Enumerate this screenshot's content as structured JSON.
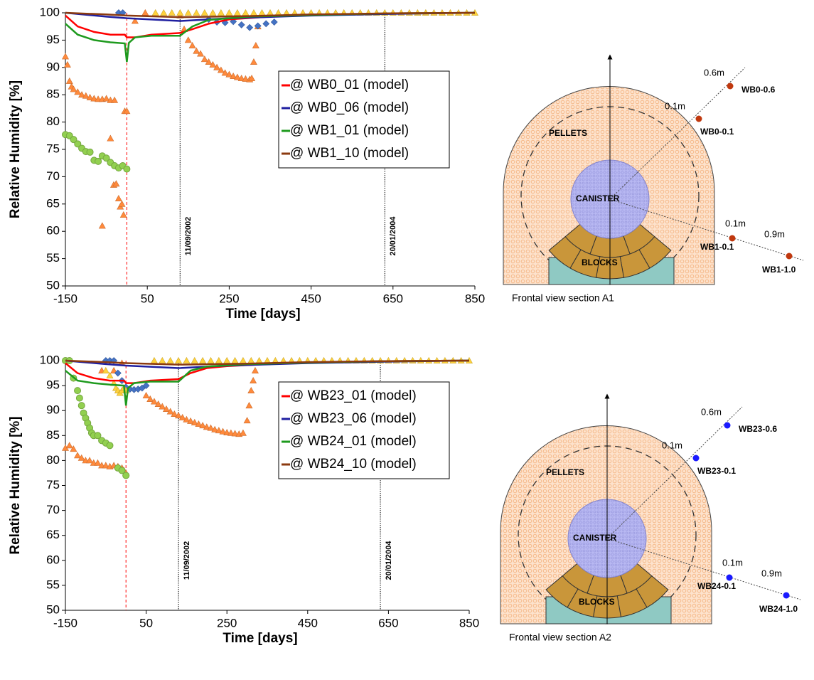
{
  "chart_data": [
    {
      "type": "line",
      "x_label": "Time [days]",
      "y_label": "Relative Humidity [%]",
      "xlim": [
        -150,
        850
      ],
      "xticks": [
        -150,
        50,
        250,
        450,
        650,
        850
      ],
      "ylim": [
        50,
        100
      ],
      "yticks": [
        50,
        55,
        60,
        65,
        70,
        75,
        80,
        85,
        90,
        95,
        100
      ],
      "legend_loc": "upper center",
      "series": [
        {
          "name": "@ WB0_01 (model)",
          "color": "#ff0000",
          "x": [
            -150,
            -120,
            -80,
            -40,
            -5,
            0,
            20,
            60,
            130,
            160,
            200,
            250,
            350,
            450,
            650,
            850
          ],
          "values": [
            99.5,
            97.5,
            96.5,
            96,
            96,
            95.5,
            95.5,
            96,
            96.3,
            97,
            98,
            98.8,
            99.3,
            99.6,
            99.9,
            100
          ]
        },
        {
          "name": "@ WB0_06 (model)",
          "color": "#1f1fa0",
          "x": [
            -150,
            -50,
            0,
            130,
            250,
            450,
            650,
            850
          ],
          "values": [
            100,
            99.3,
            99,
            98.5,
            99,
            99.5,
            99.8,
            100
          ]
        },
        {
          "name": "@ WB1_01 (model)",
          "color": "#1e9a1e",
          "x": [
            -150,
            -120,
            -80,
            -40,
            -5,
            0,
            5,
            20,
            60,
            130,
            160,
            200,
            300,
            450,
            650,
            850
          ],
          "values": [
            98,
            96,
            95,
            94.6,
            94.4,
            91,
            94.5,
            95.5,
            95.8,
            95.8,
            97.5,
            98.7,
            99.3,
            99.6,
            99.9,
            100
          ]
        },
        {
          "name": "@ WB1_10 (model)",
          "color": "#8b3a0f",
          "x": [
            -150,
            -50,
            0,
            130,
            300,
            450,
            650,
            850
          ],
          "values": [
            100,
            99.7,
            99.5,
            99.2,
            99.4,
            99.7,
            99.9,
            100
          ]
        }
      ],
      "measurements": [
        {
          "marker": "triangle",
          "color": "#ff8a3c",
          "x": [
            -150,
            -145,
            -140,
            -135,
            -130,
            -120,
            -110,
            -100,
            -90,
            -80,
            -70,
            -60,
            -50,
            -40,
            -30,
            -60,
            -40,
            -32,
            -26,
            -20,
            -16,
            -12,
            -8,
            -5,
            0,
            20,
            45,
            130,
            140,
            150,
            160,
            170,
            180,
            190,
            200,
            210,
            220,
            230,
            240,
            250,
            260,
            270,
            280,
            290,
            300,
            305,
            310,
            315,
            320
          ],
          "values": [
            92,
            90.5,
            87.5,
            86.5,
            86,
            85.5,
            85,
            84.8,
            84.5,
            84.3,
            84.2,
            84.2,
            84.3,
            84,
            84,
            61,
            77,
            68.5,
            68.7,
            66,
            64.5,
            65,
            63,
            82,
            82,
            98.5,
            100,
            99.5,
            97,
            95,
            94,
            93,
            92.5,
            91.5,
            91,
            90.5,
            90,
            89.5,
            89,
            88.7,
            88.4,
            88.2,
            88,
            87.9,
            87.8,
            88,
            91,
            94,
            97.5
          ]
        },
        {
          "marker": "circle",
          "color": "#92d050",
          "x": [
            -150,
            -140,
            -130,
            -120,
            -110,
            -100,
            -90,
            -80,
            -70,
            -60,
            -50,
            -40,
            -30,
            -20,
            -10,
            0
          ],
          "values": [
            77.7,
            77.5,
            76.8,
            76,
            75.2,
            74.6,
            74.5,
            73,
            72.8,
            73.8,
            73.4,
            72.6,
            72,
            71.6,
            72,
            71.4
          ]
        },
        {
          "marker": "diamond",
          "color": "#4472c4",
          "x": [
            -20,
            -10,
            200,
            220,
            240,
            260,
            280,
            300,
            320,
            340,
            360
          ],
          "values": [
            100,
            100,
            98.8,
            98.3,
            98.2,
            98.4,
            97.8,
            97.3,
            97.6,
            98,
            98.3
          ]
        },
        {
          "marker": "triangle",
          "color": "#ffd23c",
          "x": [
            70,
            90,
            110,
            130,
            150,
            170,
            190,
            210,
            230,
            250,
            270,
            290,
            310,
            330,
            350,
            370,
            390,
            410,
            430,
            450,
            470,
            490,
            510,
            530,
            550,
            570,
            590,
            610,
            630,
            650,
            670,
            690,
            710,
            730,
            750,
            770,
            790,
            810,
            830,
            850
          ],
          "values": [
            100,
            100,
            100,
            100,
            100,
            100,
            100,
            100,
            100,
            100,
            100,
            100,
            100,
            100,
            100,
            100,
            100,
            100,
            100,
            100,
            100,
            100,
            100,
            100,
            100,
            100,
            100,
            100,
            100,
            100,
            100,
            100,
            100,
            100,
            100,
            100,
            100,
            100,
            100,
            100
          ]
        }
      ],
      "vlines": [
        {
          "x": 0,
          "color": "#ff0000",
          "style": "dashed"
        },
        {
          "x": 130,
          "color": "#000000",
          "style": "dotted",
          "label": "11/09/2002"
        },
        {
          "x": 630,
          "color": "#000000",
          "style": "dotted",
          "label": "20/01/2004"
        }
      ]
    },
    {
      "type": "line",
      "x_label": "Time [days]",
      "y_label": "Relative Humidity [%]",
      "xlim": [
        -150,
        850
      ],
      "xticks": [
        -150,
        50,
        250,
        450,
        650,
        850
      ],
      "ylim": [
        50,
        100
      ],
      "yticks": [
        50,
        55,
        60,
        65,
        70,
        75,
        80,
        85,
        90,
        95,
        100
      ],
      "legend_loc": "upper center",
      "series": [
        {
          "name": "@ WB23_01 (model)",
          "color": "#ff0000",
          "x": [
            -150,
            -120,
            -80,
            -40,
            -5,
            0,
            20,
            60,
            130,
            160,
            200,
            250,
            350,
            450,
            650,
            850
          ],
          "values": [
            99.5,
            97.5,
            96.5,
            96,
            96,
            95.5,
            95.5,
            96,
            96.3,
            97.5,
            98.5,
            98.9,
            99.3,
            99.6,
            99.9,
            100
          ]
        },
        {
          "name": "@ WB23_06 (model)",
          "color": "#1f1fa0",
          "x": [
            -150,
            -50,
            0,
            130,
            250,
            450,
            650,
            850
          ],
          "values": [
            100,
            99.3,
            99,
            98.5,
            99,
            99.5,
            99.8,
            100
          ]
        },
        {
          "name": "@ WB24_01 (model)",
          "color": "#1e9a1e",
          "x": [
            -150,
            -120,
            -80,
            -40,
            -5,
            0,
            5,
            20,
            60,
            130,
            160,
            200,
            300,
            450,
            650,
            850
          ],
          "values": [
            98,
            96,
            95.5,
            95.2,
            95,
            91,
            94.5,
            95.5,
            95.8,
            95.8,
            98,
            98.8,
            99.3,
            99.6,
            99.9,
            100
          ]
        },
        {
          "name": "@ WB24_10 (model)",
          "color": "#8b3a0f",
          "x": [
            -150,
            -50,
            0,
            130,
            300,
            450,
            650,
            850
          ],
          "values": [
            100,
            99.7,
            99.5,
            99.2,
            99.4,
            99.7,
            99.9,
            100
          ]
        }
      ],
      "measurements": [
        {
          "marker": "triangle",
          "color": "#ff8a3c",
          "x": [
            -150,
            -140,
            -130,
            -120,
            -110,
            -100,
            -90,
            -80,
            -70,
            -60,
            -50,
            -40,
            -30,
            -20,
            -10,
            -5,
            0,
            -60,
            -30,
            -10,
            50,
            60,
            70,
            80,
            90,
            100,
            110,
            120,
            130,
            140,
            150,
            160,
            170,
            180,
            190,
            200,
            210,
            220,
            230,
            240,
            250,
            260,
            270,
            280,
            290,
            300,
            305,
            310,
            315,
            320
          ],
          "values": [
            82.5,
            83,
            82.3,
            81,
            80.5,
            80,
            80,
            79.5,
            79.5,
            79,
            79,
            78.8,
            79,
            78.8,
            78.5,
            78,
            77.5,
            98,
            98,
            99.5,
            93,
            92.3,
            91.8,
            91.3,
            90.8,
            90.3,
            89.8,
            89.3,
            89,
            88.6,
            88.2,
            87.9,
            87.6,
            87.3,
            87,
            86.7,
            86.5,
            86.2,
            86,
            85.8,
            85.6,
            85.5,
            85.4,
            85.3,
            85.5,
            88,
            91,
            94,
            96,
            98
          ]
        },
        {
          "marker": "circle",
          "color": "#92d050",
          "x": [
            -150,
            -140,
            -130,
            -120,
            -115,
            -110,
            -105,
            -100,
            -95,
            -90,
            -85,
            -80,
            -70,
            -60,
            -50,
            -40,
            -20,
            -10,
            0
          ],
          "values": [
            100,
            100,
            96.5,
            94,
            92.5,
            91,
            89.5,
            88.5,
            87.5,
            86.5,
            85.5,
            85,
            85,
            84,
            83.5,
            83,
            78.5,
            78,
            77
          ]
        },
        {
          "marker": "diamond",
          "color": "#4472c4",
          "x": [
            -50,
            -40,
            -30,
            -20,
            -10,
            0,
            10,
            20,
            30,
            40,
            50
          ],
          "values": [
            100,
            100,
            100,
            97.5,
            96,
            94.7,
            94.3,
            94.2,
            94.3,
            94.5,
            95
          ]
        },
        {
          "marker": "triangle",
          "color": "#ffd23c",
          "x": [
            -50,
            -40,
            -30,
            -25,
            -20,
            -15,
            -10,
            -5,
            0,
            70,
            90,
            110,
            130,
            150,
            170,
            190,
            210,
            230,
            250,
            270,
            290,
            310,
            330,
            350,
            370,
            390,
            410,
            430,
            450,
            470,
            490,
            510,
            530,
            550,
            570,
            590,
            610,
            630,
            650,
            670,
            690,
            710,
            730,
            750,
            770,
            790,
            810,
            830,
            850
          ],
          "values": [
            98,
            97,
            95.5,
            94.5,
            94,
            93.5,
            94,
            94.5,
            94,
            100,
            100,
            100,
            100,
            100,
            100,
            100,
            100,
            100,
            100,
            100,
            100,
            100,
            100,
            100,
            100,
            100,
            100,
            100,
            100,
            100,
            100,
            100,
            100,
            100,
            100,
            100,
            100,
            100,
            100,
            100,
            100,
            100,
            100,
            100,
            100,
            100,
            100,
            100,
            100
          ]
        }
      ],
      "vlines": [
        {
          "x": 0,
          "color": "#ff0000",
          "style": "dashed"
        },
        {
          "x": 130,
          "color": "#000000",
          "style": "dotted",
          "label": "11/09/2002"
        },
        {
          "x": 630,
          "color": "#000000",
          "style": "dotted",
          "label": "20/01/2004"
        }
      ]
    }
  ],
  "diagrams": [
    {
      "pellets": "PELLETS",
      "canister": "CANISTER",
      "blocks": "BLOCKS",
      "caption": "Frontal view section A1",
      "point_color": "#c0380e",
      "points": [
        {
          "distance": "0.6m",
          "name": "WB0-0.6"
        },
        {
          "distance": "0.1m",
          "name": "WB0-0.1"
        },
        {
          "distance": "0.1m",
          "name": "WB1-0.1"
        },
        {
          "distance": "0.9m",
          "name": "WB1-1.0"
        }
      ]
    },
    {
      "pellets": "PELLETS",
      "canister": "CANISTER",
      "blocks": "BLOCKS",
      "caption": "Frontal view section A2",
      "point_color": "#1a1aff",
      "points": [
        {
          "distance": "0.6m",
          "name": "WB23-0.6"
        },
        {
          "distance": "0.1m",
          "name": "WB23-0.1"
        },
        {
          "distance": "0.1m",
          "name": "WB24-0.1"
        },
        {
          "distance": "0.9m",
          "name": "WB24-1.0"
        }
      ]
    }
  ]
}
